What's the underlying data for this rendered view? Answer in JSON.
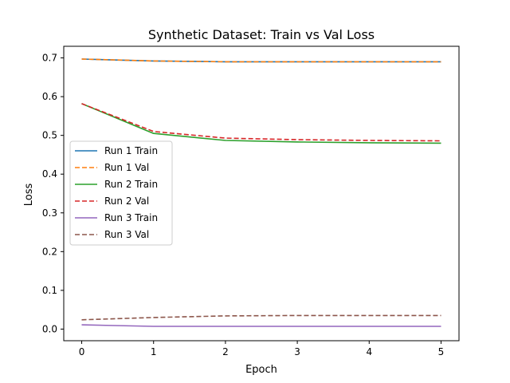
{
  "chart_data": {
    "type": "line",
    "title": "Synthetic Dataset: Train vs Val Loss",
    "xlabel": "Epoch",
    "ylabel": "Loss",
    "x": [
      0,
      1,
      2,
      3,
      4,
      5
    ],
    "xlim": [
      -0.25,
      5.25
    ],
    "ylim": [
      -0.03,
      0.73
    ],
    "xticks": [
      "0",
      "1",
      "2",
      "3",
      "4",
      "5"
    ],
    "yticks": [
      "0.0",
      "0.1",
      "0.2",
      "0.3",
      "0.4",
      "0.5",
      "0.6",
      "0.7"
    ],
    "grid": false,
    "legend_position": "center-left",
    "series": [
      {
        "name": "Run 1 Train",
        "color": "#1f77b4",
        "style": "solid",
        "values": [
          0.697,
          0.692,
          0.69,
          0.69,
          0.69,
          0.69
        ]
      },
      {
        "name": "Run 1 Val",
        "color": "#ff7f0e",
        "style": "dashed",
        "values": [
          0.697,
          0.692,
          0.69,
          0.69,
          0.69,
          0.69
        ]
      },
      {
        "name": "Run 2 Train",
        "color": "#2ca02c",
        "style": "solid",
        "values": [
          0.582,
          0.505,
          0.487,
          0.483,
          0.481,
          0.48
        ]
      },
      {
        "name": "Run 2 Val",
        "color": "#d62728",
        "style": "dashed",
        "values": [
          0.582,
          0.51,
          0.493,
          0.489,
          0.487,
          0.486
        ]
      },
      {
        "name": "Run 3 Train",
        "color": "#9467bd",
        "style": "solid",
        "values": [
          0.011,
          0.007,
          0.007,
          0.007,
          0.007,
          0.007
        ]
      },
      {
        "name": "Run 3 Val",
        "color": "#8c564b",
        "style": "dashed",
        "values": [
          0.024,
          0.03,
          0.034,
          0.035,
          0.035,
          0.035
        ]
      }
    ]
  }
}
